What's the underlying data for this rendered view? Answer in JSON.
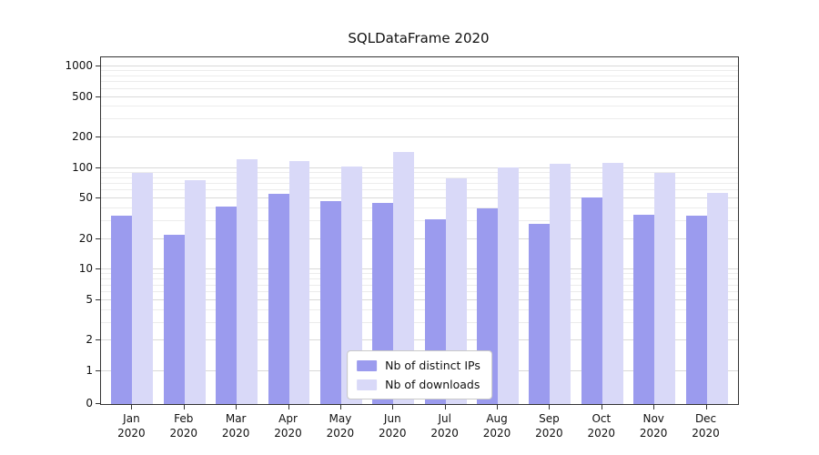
{
  "title": "SQLDataFrame 2020",
  "chart_data": {
    "type": "bar",
    "title": "SQLDataFrame 2020",
    "yscale": "symlog",
    "ylim": [
      0,
      1000
    ],
    "yticks": [
      0,
      1,
      2,
      5,
      10,
      20,
      50,
      100,
      200,
      500,
      1000
    ],
    "minor_yticks": [
      3,
      4,
      6,
      7,
      8,
      9,
      30,
      40,
      60,
      70,
      80,
      90,
      300,
      400,
      600,
      700,
      800,
      900
    ],
    "grid": true,
    "legend_position": "lower center",
    "categories": [
      "Jan",
      "Feb",
      "Mar",
      "Apr",
      "May",
      "Jun",
      "Jul",
      "Aug",
      "Sep",
      "Oct",
      "Nov",
      "Dec"
    ],
    "year": "2020",
    "series": [
      {
        "name": "Nb of distinct IPs",
        "color": "#9b9bee",
        "values": [
          34,
          22,
          42,
          56,
          47,
          45,
          31,
          40,
          28,
          51,
          35,
          34
        ]
      },
      {
        "name": "Nb of downloads",
        "color": "#d9d9f8",
        "values": [
          90,
          76,
          122,
          118,
          104,
          143,
          79,
          101,
          111,
          113,
          90,
          57
        ]
      }
    ]
  }
}
